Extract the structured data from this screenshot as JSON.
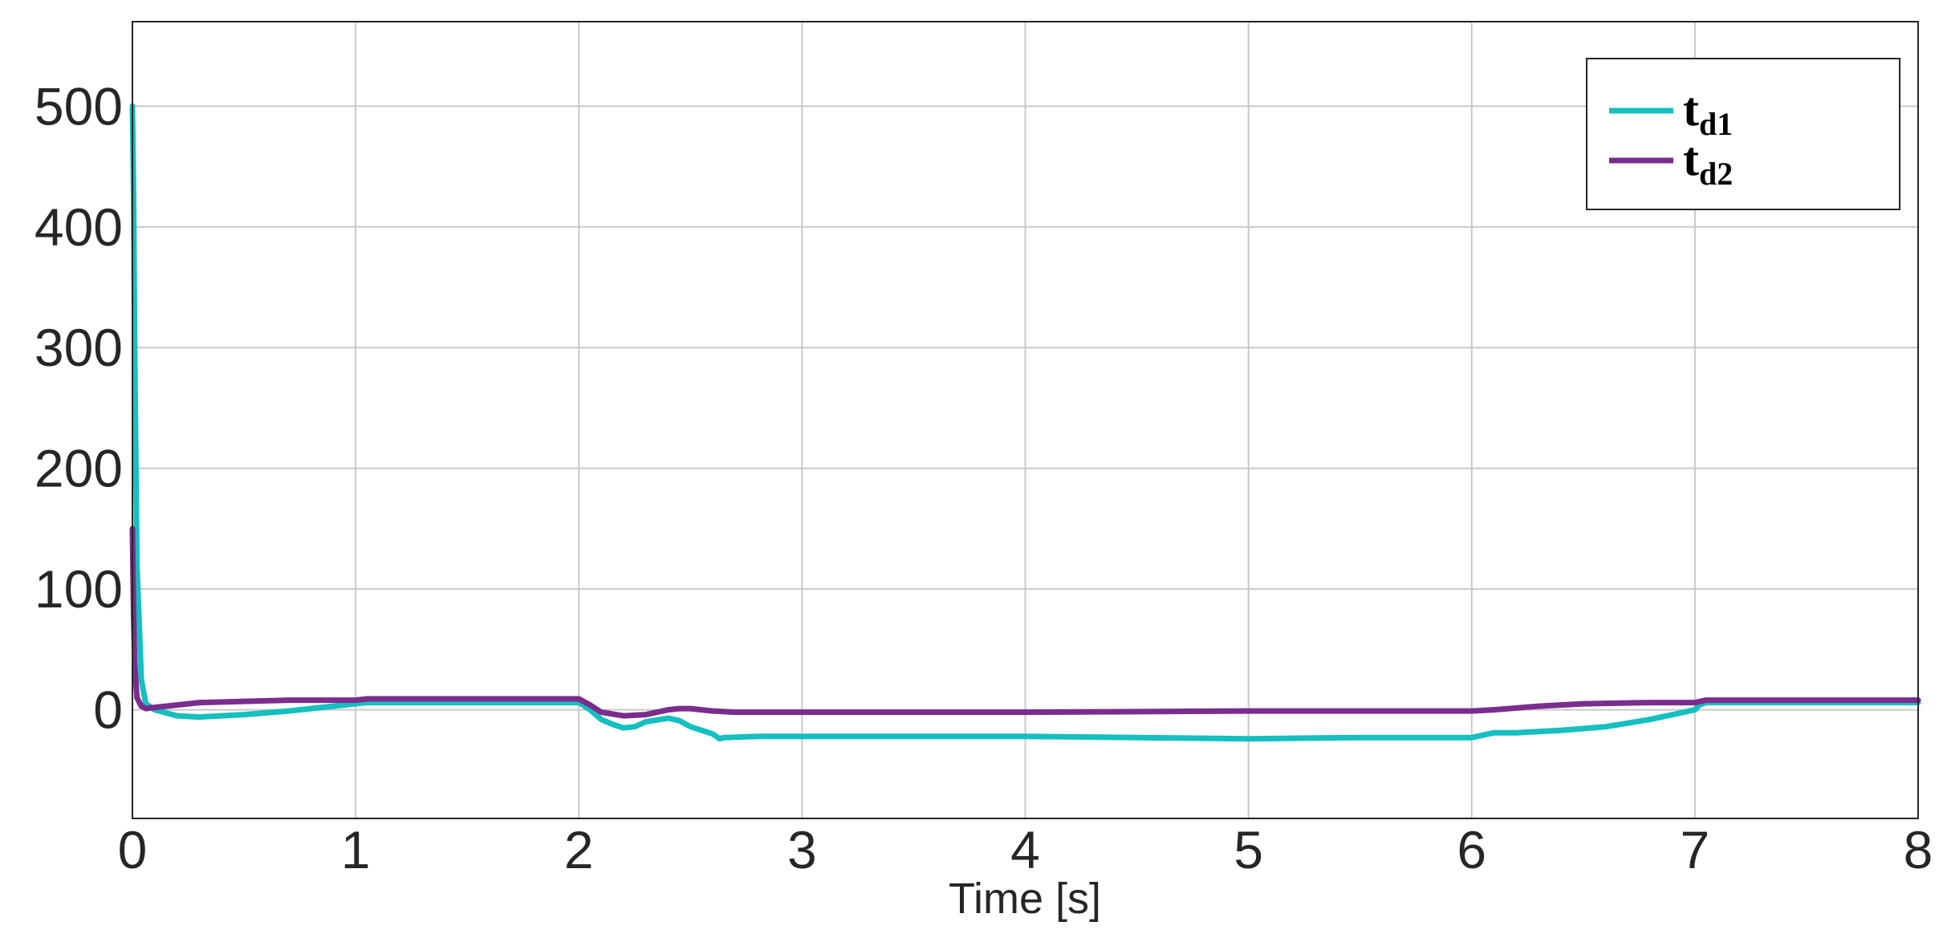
{
  "chart_data": {
    "type": "line",
    "title": "",
    "xlabel": "Time [s]",
    "ylabel": "",
    "xlim": [
      0,
      8
    ],
    "ylim": [
      -90,
      570
    ],
    "x_ticks": [
      0,
      1,
      2,
      3,
      4,
      5,
      6,
      7,
      8
    ],
    "y_ticks": [
      0,
      100,
      200,
      300,
      400,
      500
    ],
    "grid": true,
    "legend_position": "top-right",
    "series": [
      {
        "name": "t_d1",
        "legend_main": "t",
        "legend_sub": "d1",
        "color": "#16bfc0",
        "x": [
          0,
          0.005,
          0.01,
          0.02,
          0.04,
          0.06,
          0.1,
          0.2,
          0.3,
          0.5,
          0.7,
          0.9,
          1.0,
          1.05,
          1.5,
          2.0,
          2.05,
          2.1,
          2.15,
          2.2,
          2.25,
          2.3,
          2.4,
          2.45,
          2.5,
          2.6,
          2.63,
          2.65,
          2.8,
          3.0,
          3.5,
          4.0,
          4.5,
          5.0,
          5.5,
          6.0,
          6.05,
          6.1,
          6.2,
          6.4,
          6.6,
          6.8,
          7.0,
          7.02,
          7.05,
          7.5,
          8.0
        ],
        "values": [
          500,
          430,
          300,
          120,
          25,
          5,
          0,
          -5,
          -6,
          -4,
          -1,
          3,
          5,
          6,
          6,
          6,
          0,
          -8,
          -12,
          -15,
          -14,
          -10,
          -7,
          -9,
          -14,
          -20,
          -24,
          -23,
          -22,
          -22,
          -22,
          -22,
          -23,
          -24,
          -23,
          -23,
          -21,
          -19,
          -19,
          -17,
          -14,
          -8,
          0,
          4,
          6,
          6,
          6
        ]
      },
      {
        "name": "t_d2",
        "legend_main": "t",
        "legend_sub": "d2",
        "color": "#7b2d8e",
        "x": [
          0,
          0.005,
          0.01,
          0.02,
          0.04,
          0.06,
          0.1,
          0.2,
          0.3,
          0.5,
          0.7,
          0.9,
          1.0,
          1.05,
          1.5,
          2.0,
          2.05,
          2.1,
          2.2,
          2.3,
          2.4,
          2.45,
          2.5,
          2.6,
          2.7,
          3.0,
          4.0,
          5.0,
          6.0,
          6.1,
          6.3,
          6.5,
          6.8,
          7.0,
          7.05,
          7.5,
          8.0
        ],
        "values": [
          150,
          80,
          40,
          10,
          3,
          1,
          2,
          4,
          6,
          7,
          8,
          8,
          8,
          9,
          9,
          9,
          4,
          -2,
          -5,
          -4,
          0,
          1,
          1,
          -1,
          -2,
          -2,
          -2,
          -1,
          -1,
          0,
          3,
          5,
          6,
          6,
          8,
          8,
          8
        ]
      }
    ]
  }
}
